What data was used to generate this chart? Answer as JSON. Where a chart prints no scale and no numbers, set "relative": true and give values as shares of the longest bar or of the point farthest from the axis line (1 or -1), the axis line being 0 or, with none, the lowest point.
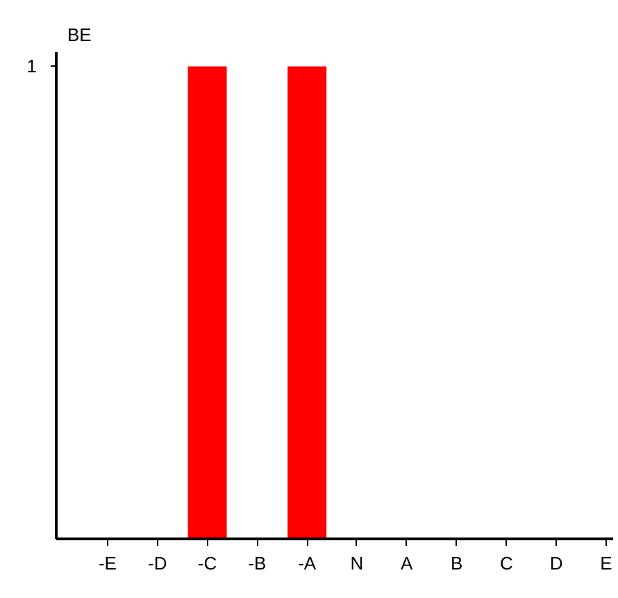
{
  "chart_data": {
    "type": "bar",
    "ylabel": "BE",
    "relative": true,
    "categories": [
      "-E",
      "-D",
      "-C",
      "-B",
      "-A",
      "N",
      "A",
      "B",
      "C",
      "D",
      "E"
    ],
    "values": [
      0,
      0,
      1,
      0,
      1,
      0,
      0,
      0,
      0,
      0,
      0
    ],
    "color": "#ff0000",
    "annotations": [
      "1"
    ],
    "grid": false
  }
}
